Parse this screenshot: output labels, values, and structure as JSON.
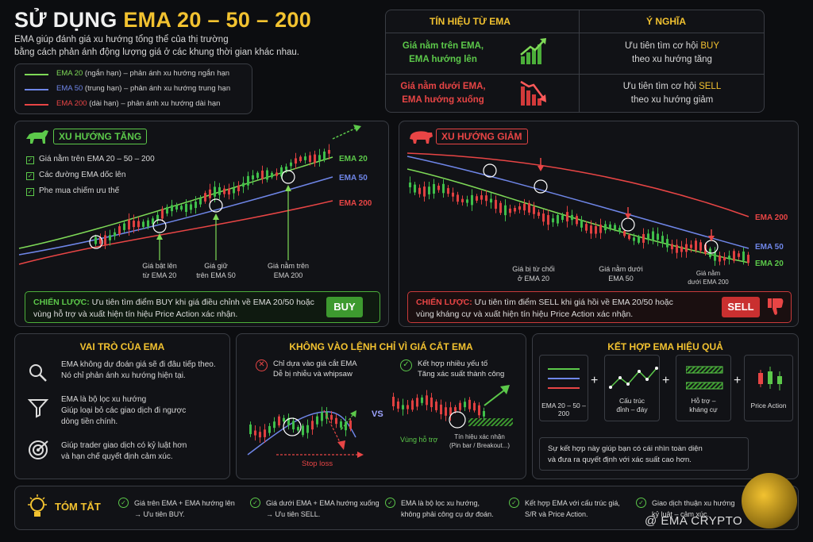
{
  "title": {
    "prefix": "SỬ DỤNG ",
    "highlight": "EMA 20 – 50 – 200"
  },
  "intro": {
    "line1": "EMA giúp đánh giá xu hướng tổng thể của thị trường",
    "line2": "bằng cách phản ánh động lượng giá ở các khung thời gian khác nhau."
  },
  "legend": [
    {
      "name": "EMA 20",
      "desc": " (ngắn hạn) – phản ánh xu hướng ngắn hạn",
      "color": "#7ed957"
    },
    {
      "name": "EMA 50",
      "desc": " (trung hạn) – phản ánh xu hướng trung hạn",
      "color": "#6f86e8"
    },
    {
      "name": "EMA 200",
      "desc": " (dài hạn) – phản ánh xu hướng dài hạn",
      "color": "#e84545"
    }
  ],
  "signals": {
    "col1": "TÍN HIỆU TỪ EMA",
    "col2": "Ý NGHĨA",
    "bull": {
      "l1": "Giá nằm trên EMA,",
      "l2": "EMA hướng lên",
      "r1": "Ưu tiên tìm cơ hội ",
      "r1b": "BUY",
      "r2": "theo xu hướng tăng"
    },
    "bear": {
      "l1": "Giá nằm dưới EMA,",
      "l2": "EMA hướng xuống",
      "r1": "Ưu tiên tìm cơ hội ",
      "r1b": "SELL",
      "r2": "theo xu hướng giảm"
    }
  },
  "uptrend": {
    "title": "XU HƯỚNG TĂNG",
    "checks": [
      "Giá nằm trên EMA 20 – 50 – 200",
      "Các đường EMA dốc lên",
      "Phe mua chiếm ưu thế"
    ],
    "labels": {
      "e20": "EMA 20",
      "e50": "EMA 50",
      "e200": "EMA 200"
    },
    "ann": [
      {
        "l1": "Giá bật lên",
        "l2": "từ EMA 20"
      },
      {
        "l1": "Giá giữ",
        "l2": "trên EMA 50"
      },
      {
        "l1": "Giá nằm trên",
        "l2": "EMA 200"
      }
    ],
    "strategy_label": "CHIẾN LƯỢC:",
    "strategy_l1": " Ưu tiên tìm điểm BUY khi giá điều chỉnh về EMA 20/50 hoặc",
    "strategy_l2": "vùng hỗ trợ và xuất hiện tín hiệu Price Action xác nhận.",
    "button": "BUY"
  },
  "downtrend": {
    "title": "XU HƯỚNG GIẢM",
    "labels": {
      "e200": "EMA 200",
      "e50": "EMA 50",
      "e20": "EMA 20"
    },
    "ann": [
      {
        "l1": "Giá bị từ chối",
        "l2": "ở EMA 20"
      },
      {
        "l1": "Giá nằm dưới",
        "l2": "EMA 50"
      },
      {
        "l1": "Giá nằm",
        "l2": "dưới EMA 200"
      }
    ],
    "strategy_label": "CHIẾN LƯỢC:",
    "strategy_l1": " Ưu tiên tìm điểm SELL khi giá hồi về EMA 20/50 hoặc",
    "strategy_l2": "vùng kháng cự và xuất hiện tín hiệu Price Action xác nhận.",
    "button": "SELL"
  },
  "role": {
    "title": "VAI TRÒ CỦA EMA",
    "items": [
      {
        "l1": "EMA không dự đoán giá sẽ đi đâu tiếp theo.",
        "l2": "Nó chỉ phản ánh xu hướng hiện tại."
      },
      {
        "l1": "EMA là bộ lọc xu hướng",
        "l2": "Giúp loại bỏ các giao dịch đi ngược",
        "l3": "dòng tiền chính."
      },
      {
        "l1": "Giúp trader giao dịch có kỷ luật hơn",
        "l2": "và hạn chế quyết định cảm xúc."
      }
    ]
  },
  "cross": {
    "title": "KHÔNG VÀO LỆNH CHỈ VÌ GIÁ CẮT EMA",
    "bad_l1": "Chỉ dựa vào giá cắt EMA",
    "bad_l2": "Dễ bị nhiễu và whipsaw",
    "good_l1": "Kết hợp nhiều yếu tố",
    "good_l2": "Tăng xác suất thành công",
    "vs": "VS",
    "stop": "Stop loss",
    "support": "Vùng hỗ trợ",
    "signal_l1": "Tín hiệu xác nhận",
    "signal_l2": "(Pin bar / Breakout...)"
  },
  "combine": {
    "title": "KẾT HỢP EMA HIỆU QUẢ",
    "items": [
      {
        "l1": "EMA 20 – 50 – 200"
      },
      {
        "l1": "Cấu trúc",
        "l2": "đỉnh – đáy"
      },
      {
        "l1": "Hỗ trợ –",
        "l2": "kháng cự"
      },
      {
        "l1": "Price Action"
      }
    ],
    "plus": "+",
    "note_l1": "Sự kết hợp này giúp bạn có cái nhìn toàn diện",
    "note_l2": "và đưa ra quyết định với xác suất cao hơn."
  },
  "summary": {
    "title": "TÓM TẮT",
    "items": [
      {
        "l1": "Giá trên EMA +  EMA hướng lên",
        "l2": "→ Ưu tiên BUY."
      },
      {
        "l1": "Giá dưới EMA + EMA hướng xuống",
        "l2": "→ Ưu tiên SELL."
      },
      {
        "l1": "EMA là bộ lọc xu hướng,",
        "l2": "không phải công cụ dự đoán."
      },
      {
        "l1": "Kết hợp EMA với cấu trúc giá,",
        "l2": "S/R và Price Action."
      },
      {
        "l1": "Giao dịch thuận xu hướng",
        "l2": "kỷ luật – cảm xúc."
      }
    ]
  },
  "watermark": "@ EMA CRYPTO"
}
